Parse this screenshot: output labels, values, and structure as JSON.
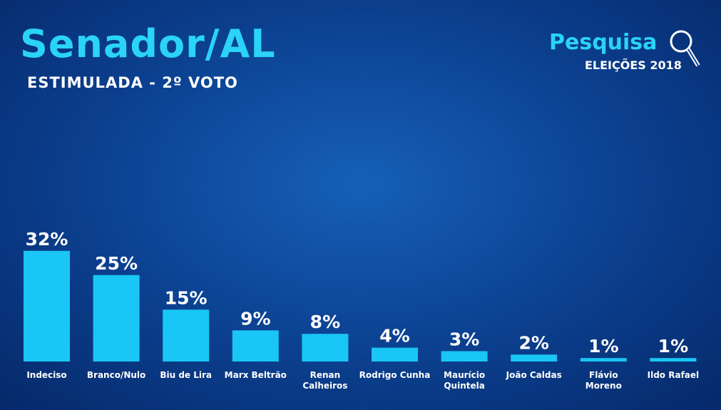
{
  "chart_data": {
    "type": "bar",
    "title": "Senador/AL",
    "subtitle": "ESTIMULADA - 2º VOTO",
    "categories": [
      "Indeciso",
      "Branco/Nulo",
      "Biu de Lira",
      "Marx Beltrão",
      "Renan\nCalheiros",
      "Rodrigo Cunha",
      "Maurício\nQuintela",
      "João Caldas",
      "Flávio\nMoreno",
      "Ildo Rafael"
    ],
    "values": [
      32,
      25,
      15,
      9,
      8,
      4,
      3,
      2,
      1,
      1
    ],
    "value_labels": [
      "32%",
      "25%",
      "15%",
      "9%",
      "8%",
      "4%",
      "3%",
      "2%",
      "1%",
      "1%"
    ],
    "color": "#19c6f5"
  },
  "logo": {
    "title": "Pesquisa",
    "subtitle": "ELEIÇÕES 2018"
  }
}
